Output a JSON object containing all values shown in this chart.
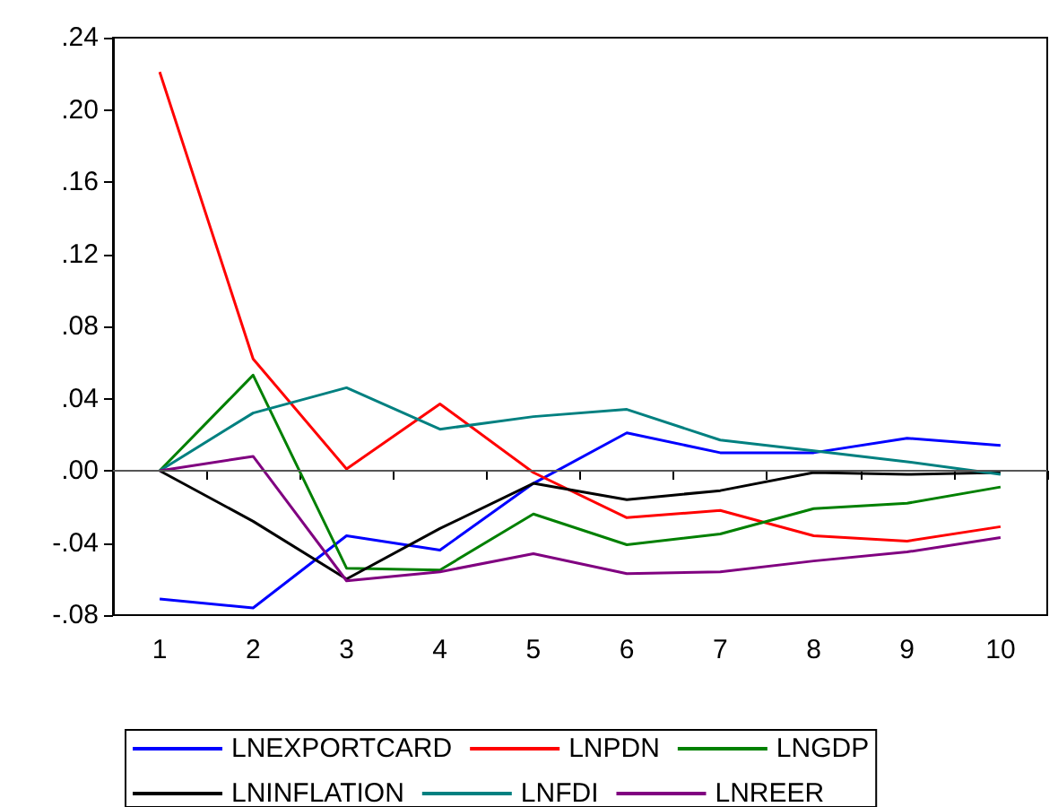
{
  "chart_data": {
    "type": "line",
    "categories": [
      "1",
      "2",
      "3",
      "4",
      "5",
      "6",
      "7",
      "8",
      "9",
      "10"
    ],
    "series": [
      {
        "name": "LNEXPORTCARD",
        "color": "#0000ff",
        "values": [
          -0.071,
          -0.076,
          -0.036,
          -0.044,
          -0.007,
          0.021,
          0.01,
          0.01,
          0.018,
          0.014
        ]
      },
      {
        "name": "LNPDN",
        "color": "#ff0000",
        "values": [
          0.221,
          0.062,
          0.001,
          0.037,
          -0.001,
          -0.026,
          -0.022,
          -0.036,
          -0.039,
          -0.031
        ]
      },
      {
        "name": "LNGDP",
        "color": "#008000",
        "values": [
          0,
          0.053,
          -0.054,
          -0.055,
          -0.024,
          -0.041,
          -0.035,
          -0.021,
          -0.018,
          -0.009
        ]
      },
      {
        "name": "LNINFLATION",
        "color": "#000000",
        "values": [
          0,
          -0.028,
          -0.06,
          -0.032,
          -0.007,
          -0.016,
          -0.011,
          -0.001,
          -0.002,
          -0.001
        ]
      },
      {
        "name": "LNFDI",
        "color": "#008080",
        "values": [
          0,
          0.032,
          0.046,
          0.023,
          0.03,
          0.034,
          0.017,
          0.011,
          0.005,
          -0.002
        ]
      },
      {
        "name": "LNREER",
        "color": "#800080",
        "values": [
          0,
          0.008,
          -0.061,
          -0.056,
          -0.046,
          -0.057,
          -0.056,
          -0.05,
          -0.045,
          -0.037
        ]
      }
    ],
    "ylim": [
      -0.08,
      0.24
    ],
    "yticks": [
      {
        "value": -0.08,
        "label": "-.08"
      },
      {
        "value": -0.04,
        "label": "-.04"
      },
      {
        "value": 0,
        "label": ".00"
      },
      {
        "value": 0.04,
        "label": ".04"
      },
      {
        "value": 0.08,
        "label": ".08"
      },
      {
        "value": 0.12,
        "label": ".12"
      },
      {
        "value": 0.16,
        "label": ".16"
      },
      {
        "value": 0.2,
        "label": ".20"
      },
      {
        "value": 0.24,
        "label": ".24"
      }
    ],
    "ref_lines": [
      {
        "axis": "y",
        "value": 0,
        "color": "#555555"
      }
    ],
    "grid": false,
    "legend": "bottom",
    "marker": "none",
    "line_style": "solid"
  }
}
